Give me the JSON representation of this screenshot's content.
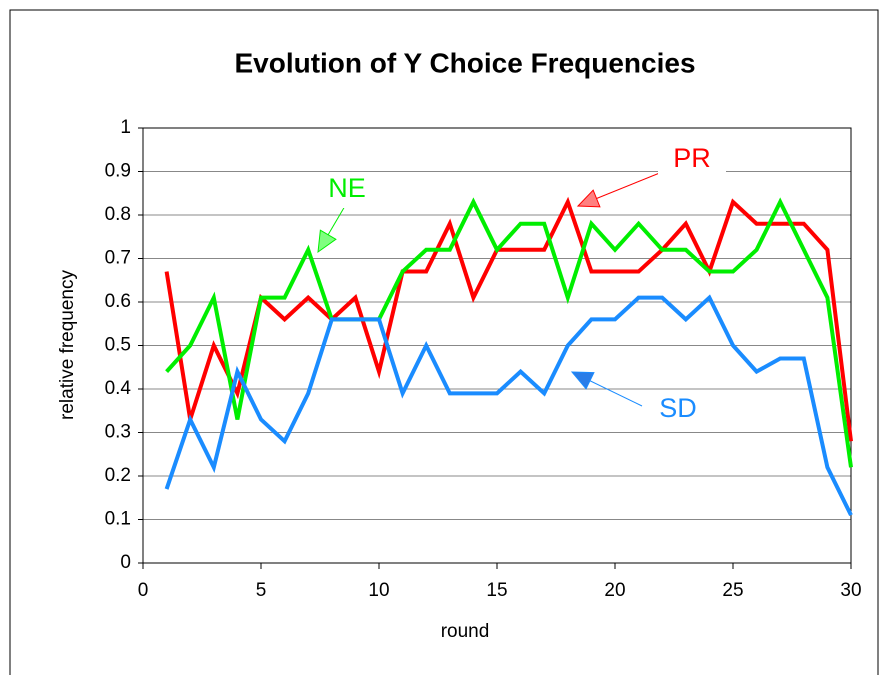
{
  "chart_data": {
    "type": "line",
    "title": "Evolution of Y Choice Frequencies",
    "xlabel": "round",
    "ylabel": "relative frequency",
    "x": [
      1,
      2,
      3,
      4,
      5,
      6,
      7,
      8,
      9,
      10,
      11,
      12,
      13,
      14,
      15,
      16,
      17,
      18,
      19,
      20,
      21,
      22,
      23,
      24,
      25,
      26,
      27,
      28,
      29,
      30
    ],
    "series": [
      {
        "name": "PR",
        "color": "#ff0000",
        "values": [
          0.67,
          0.33,
          0.5,
          0.39,
          0.61,
          0.56,
          0.61,
          0.56,
          0.61,
          0.44,
          0.67,
          0.67,
          0.78,
          0.61,
          0.72,
          0.72,
          0.72,
          0.83,
          0.67,
          0.67,
          0.67,
          0.72,
          0.78,
          0.67,
          0.83,
          0.78,
          0.78,
          0.78,
          0.72,
          0.28
        ]
      },
      {
        "name": "NE",
        "color": "#00ee00",
        "values": [
          0.44,
          0.5,
          0.61,
          0.33,
          0.61,
          0.61,
          0.72,
          0.56,
          0.56,
          0.56,
          0.67,
          0.72,
          0.72,
          0.83,
          0.72,
          0.78,
          0.78,
          0.61,
          0.78,
          0.72,
          0.78,
          0.72,
          0.72,
          0.67,
          0.67,
          0.72,
          0.83,
          0.72,
          0.61,
          0.22
        ]
      },
      {
        "name": "SD",
        "color": "#1a8cff",
        "values": [
          0.17,
          0.33,
          0.22,
          0.44,
          0.33,
          0.28,
          0.39,
          0.56,
          0.56,
          0.56,
          0.39,
          0.5,
          0.39,
          0.39,
          0.39,
          0.44,
          0.39,
          0.5,
          0.56,
          0.56,
          0.61,
          0.61,
          0.56,
          0.61,
          0.5,
          0.44,
          0.47,
          0.47,
          0.22,
          0.11
        ]
      }
    ],
    "xlim": [
      0,
      30
    ],
    "xticks": [
      0,
      5,
      10,
      15,
      20,
      25,
      30
    ],
    "ylim": [
      0,
      1
    ],
    "yticks": [
      0,
      0.1,
      0.2,
      0.3,
      0.4,
      0.5,
      0.6,
      0.7,
      0.8,
      0.9,
      1
    ],
    "grid": true
  }
}
